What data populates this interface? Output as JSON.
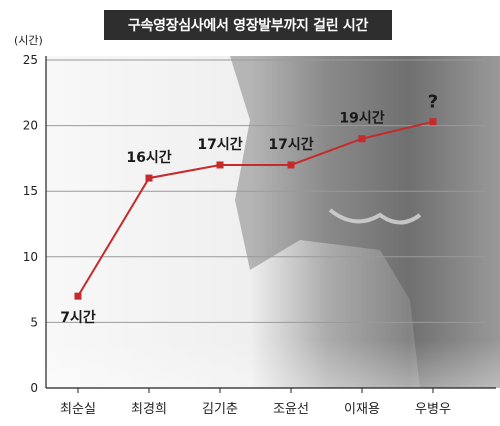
{
  "chart_data": {
    "type": "line",
    "title": "구속영장심사에서 영장발부까지 걸린 시간",
    "ylabel": "(시간)",
    "xlabel": "",
    "categories": [
      "최순실",
      "최경희",
      "김기춘",
      "조윤선",
      "이재용",
      "우병우"
    ],
    "series": [
      {
        "values": [
          7,
          16,
          17,
          17,
          19,
          null
        ]
      }
    ],
    "data_labels": [
      "7시간",
      "16시간",
      "17시간",
      "17시간",
      "19시간",
      "?"
    ],
    "unknown_value_placeholder": 20.3,
    "ylim": [
      0,
      25
    ],
    "yticks": [
      0,
      5,
      10,
      15,
      20,
      25
    ],
    "grid": true,
    "colors": {
      "line": "#c62a2a",
      "marker": "#c62a2a",
      "title_bg": "#2e2e2e",
      "title_text": "#ffffff",
      "grid": "#9a9a9a",
      "axis": "#222222",
      "background_light": "#f2f2f2",
      "background_dark": "#5a5a5a"
    }
  }
}
